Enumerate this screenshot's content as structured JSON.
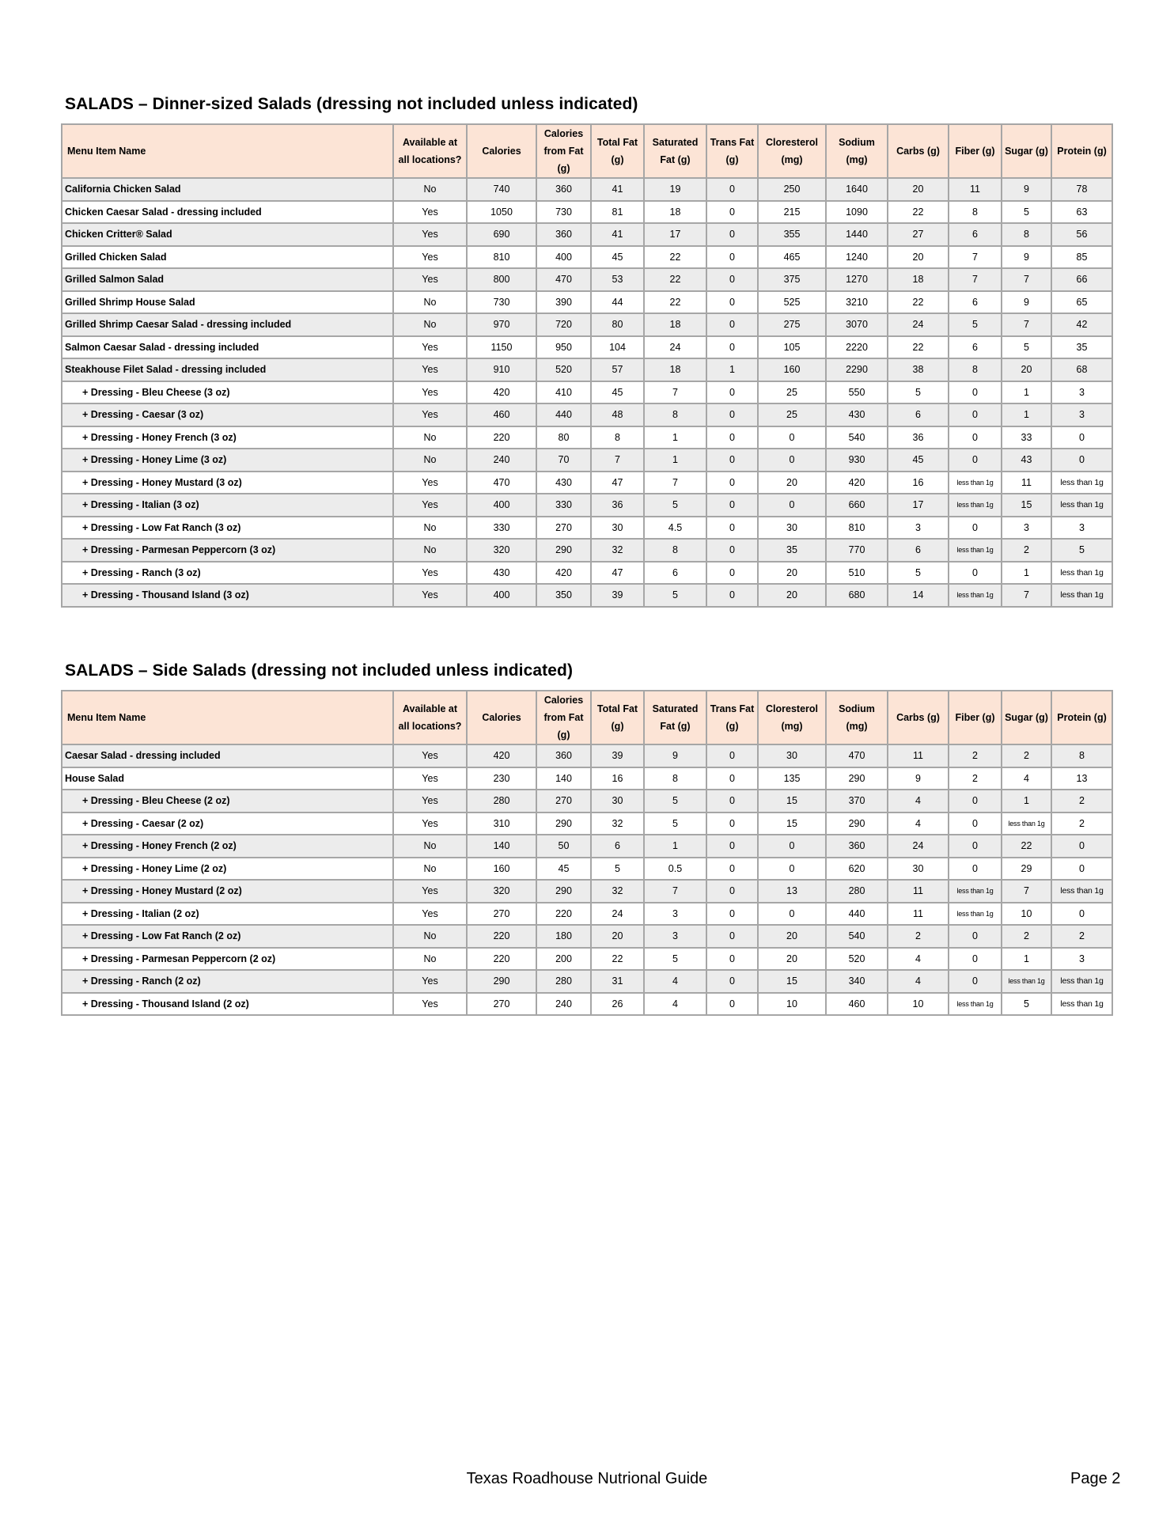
{
  "columns": [
    "Menu Item Name",
    "Available at all locations?",
    "Calories",
    "Calories from Fat (g)",
    "Total Fat (g)",
    "Saturated Fat (g)",
    "Trans Fat (g)",
    "Cloresterol (mg)",
    "Sodium (mg)",
    "Carbs (g)",
    "Fiber (g)",
    "Sugar (g)",
    "Protein (g)"
  ],
  "colors": {
    "header_bg": "#fce4d6",
    "row_alt_bg": "#ececec",
    "border": "#a6a6a6"
  },
  "tables": [
    {
      "title": "SALADS – Dinner-sized Salads (dressing not included unless indicated)",
      "rows": [
        {
          "name": "California Chicken Salad",
          "indent": false,
          "values": [
            "No",
            "740",
            "360",
            "41",
            "19",
            "0",
            "250",
            "1640",
            "20",
            "11",
            "9",
            "78"
          ]
        },
        {
          "name": "Chicken Caesar Salad - dressing included",
          "indent": false,
          "values": [
            "Yes",
            "1050",
            "730",
            "81",
            "18",
            "0",
            "215",
            "1090",
            "22",
            "8",
            "5",
            "63"
          ]
        },
        {
          "name": "Chicken Critter® Salad",
          "indent": false,
          "values": [
            "Yes",
            "690",
            "360",
            "41",
            "17",
            "0",
            "355",
            "1440",
            "27",
            "6",
            "8",
            "56"
          ]
        },
        {
          "name": "Grilled Chicken Salad",
          "indent": false,
          "values": [
            "Yes",
            "810",
            "400",
            "45",
            "22",
            "0",
            "465",
            "1240",
            "20",
            "7",
            "9",
            "85"
          ]
        },
        {
          "name": "Grilled Salmon Salad",
          "indent": false,
          "values": [
            "Yes",
            "800",
            "470",
            "53",
            "22",
            "0",
            "375",
            "1270",
            "18",
            "7",
            "7",
            "66"
          ]
        },
        {
          "name": "Grilled Shrimp House Salad",
          "indent": false,
          "values": [
            "No",
            "730",
            "390",
            "44",
            "22",
            "0",
            "525",
            "3210",
            "22",
            "6",
            "9",
            "65"
          ]
        },
        {
          "name": "Grilled Shrimp Caesar Salad - dressing included",
          "indent": false,
          "values": [
            "No",
            "970",
            "720",
            "80",
            "18",
            "0",
            "275",
            "3070",
            "24",
            "5",
            "7",
            "42"
          ]
        },
        {
          "name": "Salmon Caesar Salad - dressing included",
          "indent": false,
          "values": [
            "Yes",
            "1150",
            "950",
            "104",
            "24",
            "0",
            "105",
            "2220",
            "22",
            "6",
            "5",
            "35"
          ]
        },
        {
          "name": "Steakhouse Filet Salad - dressing included",
          "indent": false,
          "values": [
            "Yes",
            "910",
            "520",
            "57",
            "18",
            "1",
            "160",
            "2290",
            "38",
            "8",
            "20",
            "68"
          ]
        },
        {
          "name": "+ Dressing - Bleu Cheese (3 oz)",
          "indent": true,
          "values": [
            "Yes",
            "420",
            "410",
            "45",
            "7",
            "0",
            "25",
            "550",
            "5",
            "0",
            "1",
            "3"
          ]
        },
        {
          "name": "+ Dressing - Caesar (3 oz)",
          "indent": true,
          "values": [
            "Yes",
            "460",
            "440",
            "48",
            "8",
            "0",
            "25",
            "430",
            "6",
            "0",
            "1",
            "3"
          ]
        },
        {
          "name": "+ Dressing - Honey French (3 oz)",
          "indent": true,
          "values": [
            "No",
            "220",
            "80",
            "8",
            "1",
            "0",
            "0",
            "540",
            "36",
            "0",
            "33",
            "0"
          ]
        },
        {
          "name": "+ Dressing - Honey Lime (3 oz)",
          "indent": true,
          "values": [
            "No",
            "240",
            "70",
            "7",
            "1",
            "0",
            "0",
            "930",
            "45",
            "0",
            "43",
            "0"
          ]
        },
        {
          "name": "+ Dressing - Honey Mustard (3 oz)",
          "indent": true,
          "values": [
            "Yes",
            "470",
            "430",
            "47",
            "7",
            "0",
            "20",
            "420",
            "16",
            "less than 1g",
            "11",
            "less than 1g"
          ]
        },
        {
          "name": "+ Dressing - Italian (3 oz)",
          "indent": true,
          "values": [
            "Yes",
            "400",
            "330",
            "36",
            "5",
            "0",
            "0",
            "660",
            "17",
            "less than 1g",
            "15",
            "less than 1g"
          ]
        },
        {
          "name": "+ Dressing - Low Fat Ranch (3 oz)",
          "indent": true,
          "values": [
            "No",
            "330",
            "270",
            "30",
            "4.5",
            "0",
            "30",
            "810",
            "3",
            "0",
            "3",
            "3"
          ]
        },
        {
          "name": "+ Dressing - Parmesan Peppercorn (3 oz)",
          "indent": true,
          "values": [
            "No",
            "320",
            "290",
            "32",
            "8",
            "0",
            "35",
            "770",
            "6",
            "less than 1g",
            "2",
            "5"
          ]
        },
        {
          "name": "+ Dressing - Ranch (3 oz)",
          "indent": true,
          "values": [
            "Yes",
            "430",
            "420",
            "47",
            "6",
            "0",
            "20",
            "510",
            "5",
            "0",
            "1",
            "less than 1g"
          ]
        },
        {
          "name": "+ Dressing - Thousand Island (3 oz)",
          "indent": true,
          "values": [
            "Yes",
            "400",
            "350",
            "39",
            "5",
            "0",
            "20",
            "680",
            "14",
            "less than 1g",
            "7",
            "less than 1g"
          ]
        }
      ]
    },
    {
      "title": "SALADS – Side Salads (dressing not included unless indicated)",
      "rows": [
        {
          "name": "Caesar Salad - dressing included",
          "indent": false,
          "values": [
            "Yes",
            "420",
            "360",
            "39",
            "9",
            "0",
            "30",
            "470",
            "11",
            "2",
            "2",
            "8"
          ]
        },
        {
          "name": "House Salad",
          "indent": false,
          "values": [
            "Yes",
            "230",
            "140",
            "16",
            "8",
            "0",
            "135",
            "290",
            "9",
            "2",
            "4",
            "13"
          ]
        },
        {
          "name": "+ Dressing - Bleu Cheese (2 oz)",
          "indent": true,
          "values": [
            "Yes",
            "280",
            "270",
            "30",
            "5",
            "0",
            "15",
            "370",
            "4",
            "0",
            "1",
            "2"
          ]
        },
        {
          "name": "+ Dressing - Caesar (2 oz)",
          "indent": true,
          "values": [
            "Yes",
            "310",
            "290",
            "32",
            "5",
            "0",
            "15",
            "290",
            "4",
            "0",
            "less than 1g",
            "2"
          ]
        },
        {
          "name": "+ Dressing - Honey French (2 oz)",
          "indent": true,
          "values": [
            "No",
            "140",
            "50",
            "6",
            "1",
            "0",
            "0",
            "360",
            "24",
            "0",
            "22",
            "0"
          ]
        },
        {
          "name": "+ Dressing - Honey Lime (2 oz)",
          "indent": true,
          "values": [
            "No",
            "160",
            "45",
            "5",
            "0.5",
            "0",
            "0",
            "620",
            "30",
            "0",
            "29",
            "0"
          ]
        },
        {
          "name": "+ Dressing - Honey Mustard (2 oz)",
          "indent": true,
          "values": [
            "Yes",
            "320",
            "290",
            "32",
            "7",
            "0",
            "13",
            "280",
            "11",
            "less than 1g",
            "7",
            "less than 1g"
          ]
        },
        {
          "name": "+ Dressing - Italian (2 oz)",
          "indent": true,
          "values": [
            "Yes",
            "270",
            "220",
            "24",
            "3",
            "0",
            "0",
            "440",
            "11",
            "less than 1g",
            "10",
            "0"
          ]
        },
        {
          "name": "+ Dressing - Low Fat Ranch (2 oz)",
          "indent": true,
          "values": [
            "No",
            "220",
            "180",
            "20",
            "3",
            "0",
            "20",
            "540",
            "2",
            "0",
            "2",
            "2"
          ]
        },
        {
          "name": "+ Dressing - Parmesan Peppercorn (2 oz)",
          "indent": true,
          "values": [
            "No",
            "220",
            "200",
            "22",
            "5",
            "0",
            "20",
            "520",
            "4",
            "0",
            "1",
            "3"
          ]
        },
        {
          "name": "+ Dressing - Ranch (2 oz)",
          "indent": true,
          "values": [
            "Yes",
            "290",
            "280",
            "31",
            "4",
            "0",
            "15",
            "340",
            "4",
            "0",
            "less than 1g",
            "less than 1g"
          ]
        },
        {
          "name": "+ Dressing - Thousand Island (2 oz)",
          "indent": true,
          "values": [
            "Yes",
            "270",
            "240",
            "26",
            "4",
            "0",
            "10",
            "460",
            "10",
            "less than 1g",
            "5",
            "less than 1g"
          ]
        }
      ]
    }
  ],
  "footer": {
    "title": "Texas Roadhouse Nutrional Guide",
    "page": "Page 2"
  }
}
